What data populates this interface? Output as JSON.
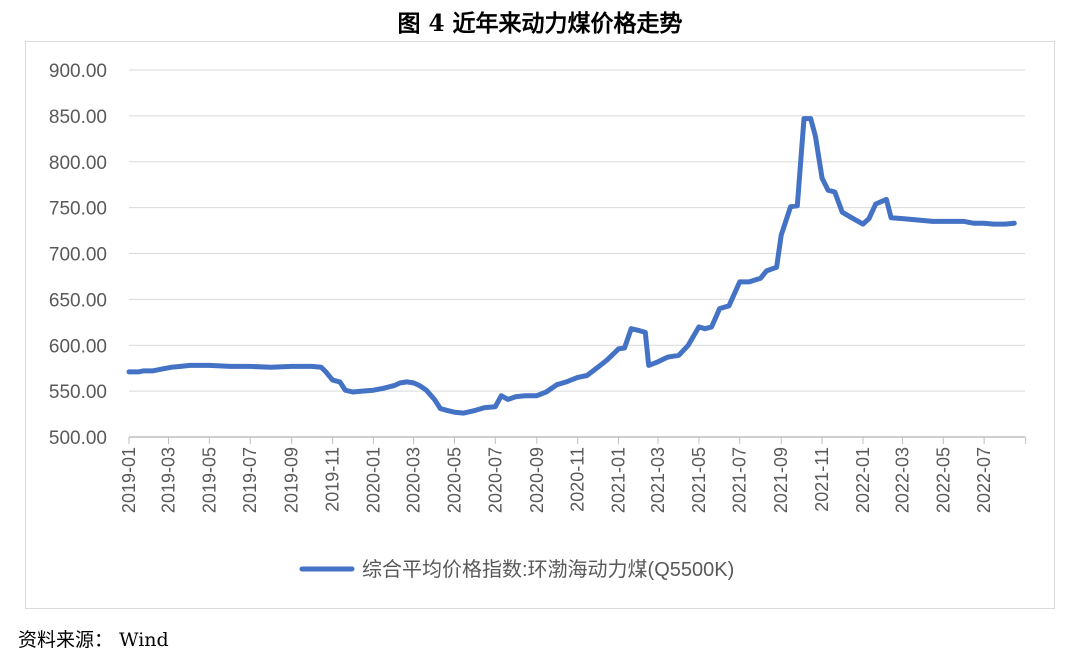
{
  "figure": {
    "title": "图 4    近年来动力煤价格走势",
    "source": "资料来源： Wind"
  },
  "colors": {
    "series": "#4472C4",
    "grid": "#d9d9d9",
    "axis": "#595959"
  },
  "chart_data": {
    "type": "line",
    "title": "",
    "xlabel": "",
    "ylabel": "",
    "ylim": [
      500,
      900
    ],
    "y_ticks": [
      "500.00",
      "550.00",
      "600.00",
      "650.00",
      "700.00",
      "750.00",
      "800.00",
      "850.00",
      "900.00"
    ],
    "grid": "horizontal",
    "legend_position": "bottom",
    "x_ticks": [
      "2019-01",
      "2019-03",
      "2019-05",
      "2019-07",
      "2019-09",
      "2019-11",
      "2020-01",
      "2020-03",
      "2020-05",
      "2020-07",
      "2020-09",
      "2020-11",
      "2021-01",
      "2021-03",
      "2021-05",
      "2021-07",
      "2021-09",
      "2021-11",
      "2022-01",
      "2022-03",
      "2022-05",
      "2022-07"
    ],
    "series": [
      {
        "name": "综合平均价格指数:环渤海动力煤(Q5500K)",
        "points": [
          [
            "2019-01-01",
            571
          ],
          [
            "2019-01-15",
            571
          ],
          [
            "2019-01-22",
            572
          ],
          [
            "2019-02-05",
            572
          ],
          [
            "2019-02-19",
            574
          ],
          [
            "2019-03-05",
            576
          ],
          [
            "2019-03-19",
            577
          ],
          [
            "2019-04-02",
            578
          ],
          [
            "2019-05-01",
            578
          ],
          [
            "2019-06-01",
            577
          ],
          [
            "2019-07-01",
            577
          ],
          [
            "2019-08-01",
            576
          ],
          [
            "2019-09-01",
            577
          ],
          [
            "2019-10-01",
            577
          ],
          [
            "2019-10-15",
            576
          ],
          [
            "2019-10-22",
            571
          ],
          [
            "2019-11-01",
            562
          ],
          [
            "2019-11-12",
            560
          ],
          [
            "2019-11-20",
            551
          ],
          [
            "2019-12-01",
            549
          ],
          [
            "2019-12-15",
            550
          ],
          [
            "2020-01-01",
            551
          ],
          [
            "2020-01-15",
            553
          ],
          [
            "2020-02-01",
            556
          ],
          [
            "2020-02-10",
            559
          ],
          [
            "2020-02-20",
            560
          ],
          [
            "2020-03-01",
            559
          ],
          [
            "2020-03-10",
            556
          ],
          [
            "2020-03-20",
            551
          ],
          [
            "2020-04-01",
            541
          ],
          [
            "2020-04-10",
            531
          ],
          [
            "2020-04-20",
            529
          ],
          [
            "2020-05-01",
            527
          ],
          [
            "2020-05-15",
            526
          ],
          [
            "2020-06-01",
            529
          ],
          [
            "2020-06-15",
            532
          ],
          [
            "2020-07-01",
            533
          ],
          [
            "2020-07-10",
            545
          ],
          [
            "2020-07-20",
            541
          ],
          [
            "2020-08-01",
            544
          ],
          [
            "2020-08-15",
            545
          ],
          [
            "2020-09-01",
            545
          ],
          [
            "2020-09-15",
            549
          ],
          [
            "2020-10-01",
            557
          ],
          [
            "2020-10-15",
            560
          ],
          [
            "2020-11-01",
            565
          ],
          [
            "2020-11-15",
            567
          ],
          [
            "2020-12-01",
            576
          ],
          [
            "2020-12-15",
            584
          ],
          [
            "2021-01-01",
            596
          ],
          [
            "2021-01-10",
            597
          ],
          [
            "2021-01-20",
            618
          ],
          [
            "2021-02-01",
            616
          ],
          [
            "2021-02-10",
            614
          ],
          [
            "2021-02-15",
            578
          ],
          [
            "2021-03-01",
            582
          ],
          [
            "2021-03-15",
            587
          ],
          [
            "2021-04-01",
            589
          ],
          [
            "2021-04-15",
            600
          ],
          [
            "2021-05-01",
            620
          ],
          [
            "2021-05-10",
            618
          ],
          [
            "2021-05-20",
            620
          ],
          [
            "2021-06-01",
            640
          ],
          [
            "2021-06-15",
            643
          ],
          [
            "2021-07-01",
            669
          ],
          [
            "2021-07-15",
            669
          ],
          [
            "2021-08-01",
            673
          ],
          [
            "2021-08-10",
            681
          ],
          [
            "2021-08-25",
            685
          ],
          [
            "2021-09-01",
            720
          ],
          [
            "2021-09-15",
            751
          ],
          [
            "2021-09-25",
            752
          ],
          [
            "2021-10-05",
            847
          ],
          [
            "2021-10-15",
            847
          ],
          [
            "2021-10-22",
            828
          ],
          [
            "2021-11-01",
            782
          ],
          [
            "2021-11-10",
            769
          ],
          [
            "2021-11-20",
            767
          ],
          [
            "2021-12-01",
            745
          ],
          [
            "2021-12-15",
            739
          ],
          [
            "2022-01-01",
            732
          ],
          [
            "2022-01-10",
            738
          ],
          [
            "2022-01-20",
            754
          ],
          [
            "2022-02-05",
            759
          ],
          [
            "2022-02-12",
            739
          ],
          [
            "2022-03-01",
            738
          ],
          [
            "2022-04-01",
            736
          ],
          [
            "2022-04-15",
            735
          ],
          [
            "2022-06-01",
            735
          ],
          [
            "2022-06-15",
            733
          ],
          [
            "2022-07-01",
            733
          ],
          [
            "2022-07-15",
            732
          ],
          [
            "2022-08-01",
            732
          ],
          [
            "2022-08-15",
            733
          ]
        ]
      }
    ]
  }
}
